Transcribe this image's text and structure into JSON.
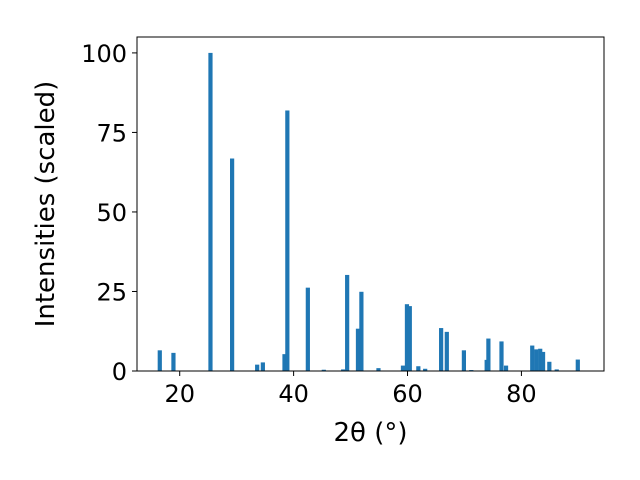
{
  "chart_data": {
    "type": "bar",
    "xlabel": "2θ (°)",
    "ylabel": "Intensities (scaled)",
    "xlim": [
      12.5,
      94.5
    ],
    "ylim": [
      0,
      105
    ],
    "x_ticks": [
      20,
      40,
      60,
      80
    ],
    "y_ticks": [
      0,
      25,
      50,
      75,
      100
    ],
    "grid": false,
    "bar_color": "#1f77b4",
    "peaks": [
      {
        "x": 16.5,
        "y": 6.5
      },
      {
        "x": 18.9,
        "y": 5.7
      },
      {
        "x": 25.4,
        "y": 100.0
      },
      {
        "x": 29.2,
        "y": 66.8
      },
      {
        "x": 33.6,
        "y": 2.0
      },
      {
        "x": 34.6,
        "y": 2.7
      },
      {
        "x": 38.4,
        "y": 5.3
      },
      {
        "x": 38.9,
        "y": 81.9
      },
      {
        "x": 42.5,
        "y": 26.2
      },
      {
        "x": 45.3,
        "y": 0.4
      },
      {
        "x": 48.7,
        "y": 0.5
      },
      {
        "x": 49.4,
        "y": 30.2
      },
      {
        "x": 51.3,
        "y": 13.3
      },
      {
        "x": 51.9,
        "y": 24.9
      },
      {
        "x": 54.9,
        "y": 0.9
      },
      {
        "x": 59.2,
        "y": 1.7
      },
      {
        "x": 59.9,
        "y": 21.0
      },
      {
        "x": 60.4,
        "y": 20.4
      },
      {
        "x": 61.9,
        "y": 1.5
      },
      {
        "x": 63.1,
        "y": 0.7
      },
      {
        "x": 65.9,
        "y": 13.5
      },
      {
        "x": 66.9,
        "y": 12.3
      },
      {
        "x": 69.9,
        "y": 6.5
      },
      {
        "x": 71.2,
        "y": 0.3
      },
      {
        "x": 73.9,
        "y": 3.5
      },
      {
        "x": 74.2,
        "y": 10.2
      },
      {
        "x": 76.5,
        "y": 9.3
      },
      {
        "x": 77.3,
        "y": 1.7
      },
      {
        "x": 81.9,
        "y": 8.0
      },
      {
        "x": 82.6,
        "y": 6.8
      },
      {
        "x": 83.3,
        "y": 7.0
      },
      {
        "x": 83.8,
        "y": 6.0
      },
      {
        "x": 84.9,
        "y": 2.9
      },
      {
        "x": 86.2,
        "y": 0.5
      },
      {
        "x": 89.9,
        "y": 3.6
      }
    ]
  }
}
